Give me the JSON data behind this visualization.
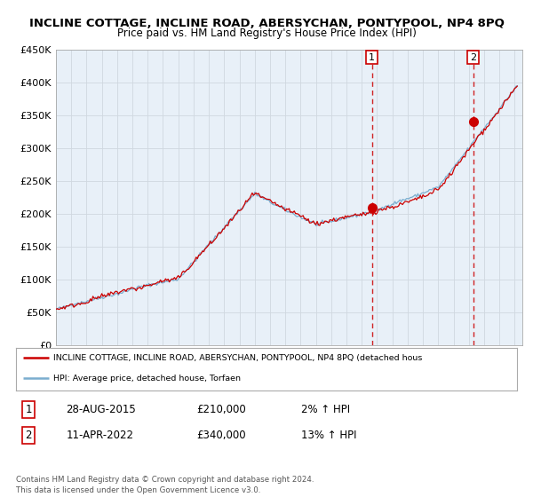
{
  "title1": "INCLINE COTTAGE, INCLINE ROAD, ABERSYCHAN, PONTYPOOL, NP4 8PQ",
  "title2": "Price paid vs. HM Land Registry's House Price Index (HPI)",
  "ylim": [
    0,
    450000
  ],
  "yticks": [
    0,
    50000,
    100000,
    150000,
    200000,
    250000,
    300000,
    350000,
    400000,
    450000
  ],
  "ytick_labels": [
    "£0",
    "£50K",
    "£100K",
    "£150K",
    "£200K",
    "£250K",
    "£300K",
    "£350K",
    "£400K",
    "£450K"
  ],
  "xlim_start": 1995.0,
  "xlim_end": 2025.5,
  "sale1_x": 2015.66,
  "sale1_y": 210000,
  "sale1_label": "1",
  "sale2_x": 2022.28,
  "sale2_y": 340000,
  "sale2_label": "2",
  "red_color": "#cc0000",
  "blue_color": "#7aadcf",
  "bg_color": "#e8f0f8",
  "grid_color": "#d0d8e0",
  "legend_line1": "INCLINE COTTAGE, INCLINE ROAD, ABERSYCHAN, PONTYPOOL, NP4 8PQ (detached hous",
  "legend_line2": "HPI: Average price, detached house, Torfaen",
  "table_row1": [
    "1",
    "28-AUG-2015",
    "£210,000",
    "2% ↑ HPI"
  ],
  "table_row2": [
    "2",
    "11-APR-2022",
    "£340,000",
    "13% ↑ HPI"
  ],
  "footnote": "Contains HM Land Registry data © Crown copyright and database right 2024.\nThis data is licensed under the Open Government Licence v3.0.",
  "title1_fontsize": 9.5,
  "title2_fontsize": 8.5
}
